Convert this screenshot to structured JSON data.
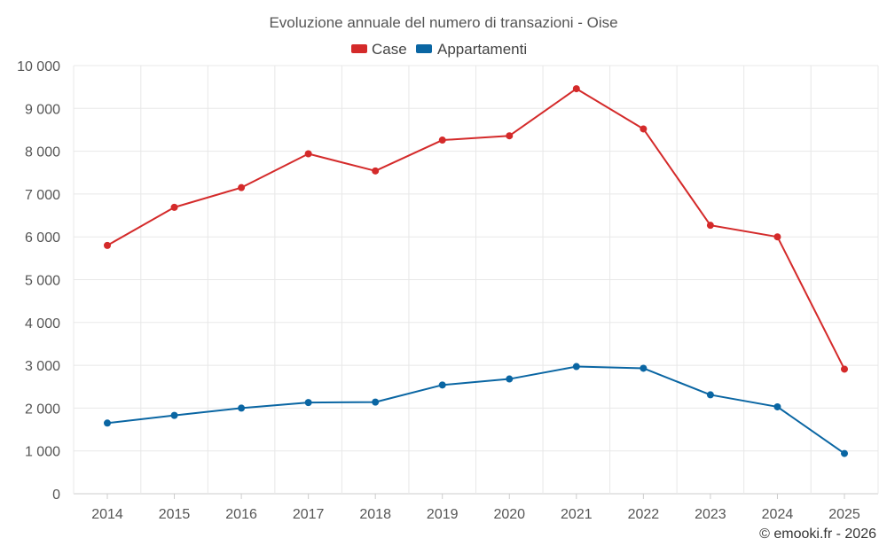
{
  "chart_data": {
    "type": "line",
    "title": "Evoluzione annuale del numero di transazioni - Oise",
    "categories": [
      "2014",
      "2015",
      "2016",
      "2017",
      "2018",
      "2019",
      "2020",
      "2021",
      "2022",
      "2023",
      "2024",
      "2025"
    ],
    "series": [
      {
        "name": "Case",
        "color": "#d42a2a",
        "values": [
          5800,
          6690,
          7150,
          7940,
          7540,
          8260,
          8360,
          9460,
          8520,
          6270,
          6000,
          2910
        ]
      },
      {
        "name": "Appartamenti",
        "color": "#0a66a3",
        "values": [
          1650,
          1830,
          2000,
          2130,
          2140,
          2540,
          2680,
          2970,
          2930,
          2310,
          2030,
          940
        ]
      }
    ],
    "ylim": [
      0,
      10000
    ],
    "yticks": [
      0,
      1000,
      2000,
      3000,
      4000,
      5000,
      6000,
      7000,
      8000,
      9000,
      10000
    ],
    "ytick_labels": [
      "0",
      "1 000",
      "2 000",
      "3 000",
      "4 000",
      "5 000",
      "6 000",
      "7 000",
      "8 000",
      "9 000",
      "10 000"
    ],
    "xlabel": "",
    "ylabel": "",
    "grid": true,
    "legend_position": "top"
  },
  "credit": "© emooki.fr - 2026"
}
